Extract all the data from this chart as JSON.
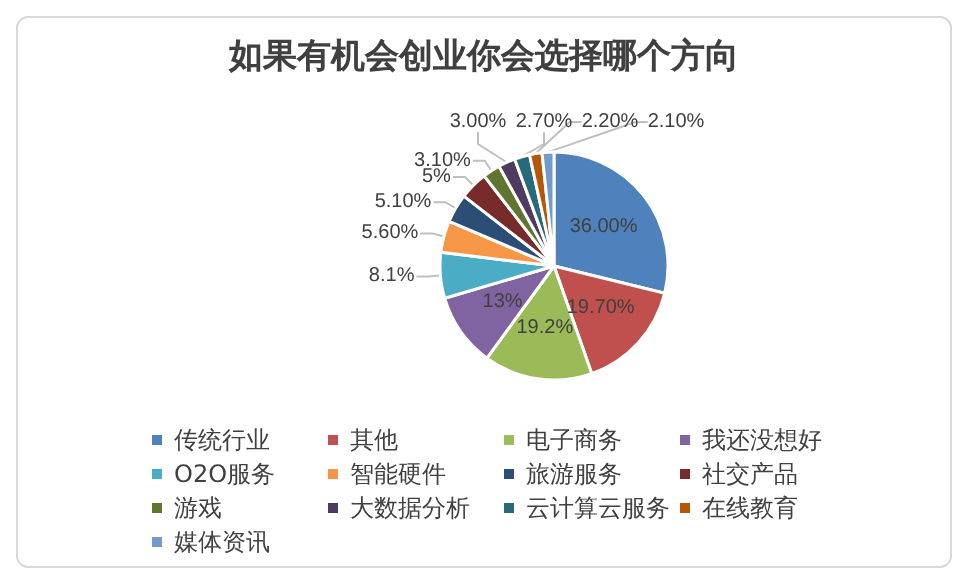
{
  "chart_data": {
    "type": "pie",
    "title": "如果有机会创业你会选择哪个方向",
    "categories": [
      "传统行业",
      "其他",
      "电子商务",
      "我还没想好",
      "O2O服务",
      "智能硬件",
      "旅游服务",
      "社交产品",
      "游戏",
      "大数据分析",
      "云计算云服务",
      "在线教育",
      "媒体资讯"
    ],
    "values": [
      36,
      19.7,
      19.2,
      13,
      8.1,
      5.6,
      5.1,
      5,
      3.1,
      3.0,
      2.7,
      2.2,
      2.1
    ],
    "value_labels": [
      "36.00%",
      "19.70%",
      "19.2%",
      "13%",
      "8.1%",
      "5.60%",
      "5.10%",
      "5%",
      "3.10%",
      "3.00%",
      "2.70%",
      "2.20%",
      "2.10%"
    ],
    "colors": [
      "#4f81bd",
      "#c0504d",
      "#9bbb59",
      "#8064a2",
      "#4bacc6",
      "#f79646",
      "#2c4d75",
      "#772c2a",
      "#5f7530",
      "#4d3b62",
      "#276a7c",
      "#b65708",
      "#729aca"
    ],
    "legend": "bottom"
  }
}
